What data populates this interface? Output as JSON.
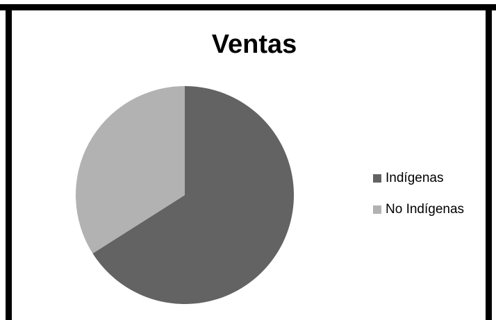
{
  "chart_data": {
    "type": "pie",
    "title": "Ventas",
    "categories": [
      "Indígenas",
      "No Indígenas"
    ],
    "values": [
      66,
      34
    ],
    "colors": [
      "#636363",
      "#b2b2b2"
    ],
    "legend": "right"
  }
}
